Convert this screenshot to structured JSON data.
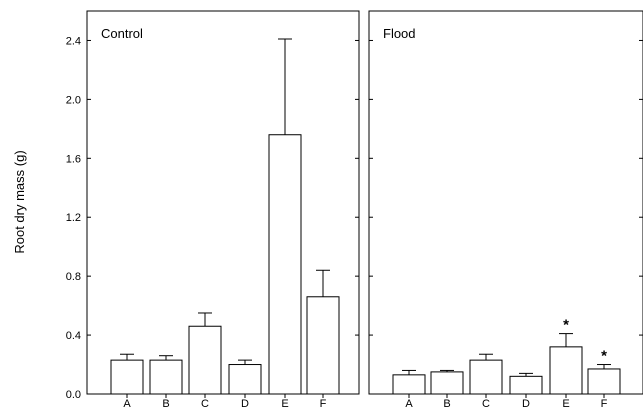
{
  "chart_data": [
    {
      "type": "bar",
      "title": "Control",
      "ylabel": "Root dry mass (g)",
      "categories": [
        "A",
        "B",
        "C",
        "D",
        "E",
        "F"
      ],
      "values": [
        0.23,
        0.23,
        0.46,
        0.2,
        1.76,
        0.66
      ],
      "error_upper": [
        0.27,
        0.26,
        0.55,
        0.23,
        2.41,
        0.84
      ],
      "significance": [
        "",
        "",
        "",
        "",
        "",
        ""
      ],
      "ylim": [
        0,
        2.6
      ],
      "yticks": [
        "0.0",
        "0.4",
        "0.8",
        "1.2",
        "1.6",
        "2.0",
        "2.4"
      ],
      "grid": false
    },
    {
      "type": "bar",
      "title": "Flood",
      "categories": [
        "A",
        "B",
        "C",
        "D",
        "E",
        "F"
      ],
      "values": [
        0.13,
        0.15,
        0.23,
        0.12,
        0.32,
        0.17
      ],
      "error_upper": [
        0.16,
        0.16,
        0.27,
        0.14,
        0.41,
        0.2
      ],
      "significance": [
        "",
        "",
        "",
        "",
        "*",
        "*"
      ],
      "ylim": [
        0,
        2.6
      ],
      "grid": false
    }
  ],
  "colors": {
    "bar_fill": "#ffffff",
    "stroke": "#000000"
  }
}
